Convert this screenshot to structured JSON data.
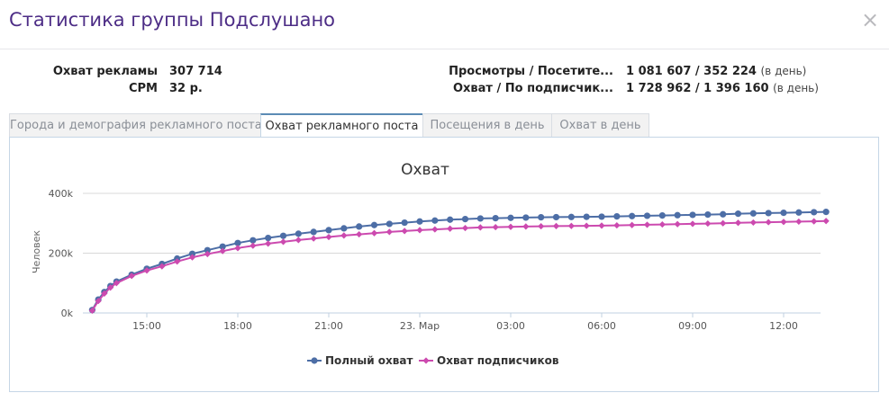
{
  "window": {
    "title": "Статистика группы Подслушано",
    "close_icon": "×"
  },
  "stats": {
    "left": [
      {
        "label": "Охват рекламы",
        "value": "307 714"
      },
      {
        "label": "CPM",
        "value": "32 р."
      }
    ],
    "right": [
      {
        "label": "Просмотры / Посетите...",
        "value": "1 081 607 / 352 224",
        "note": "(в день)"
      },
      {
        "label": "Охват / По подписчик...",
        "value": "1 728 962 / 1 396 160",
        "note": "(в день)"
      }
    ]
  },
  "tabs": [
    {
      "label": "Города и демография рекламного поста",
      "active": false
    },
    {
      "label": "Охват рекламного поста",
      "active": true
    },
    {
      "label": "Посещения в день",
      "active": false
    },
    {
      "label": "Охват в день",
      "active": false
    }
  ],
  "chart_data": {
    "type": "line",
    "title": "Охват",
    "ylabel": "Человек",
    "xlabel": "",
    "ylim": [
      0,
      400000
    ],
    "y_ticks": [
      {
        "value": 0,
        "label": "0k"
      },
      {
        "value": 200000,
        "label": "200k"
      },
      {
        "value": 400000,
        "label": "400k"
      }
    ],
    "x_range_hours": [
      13.2,
      25.9
    ],
    "x_ticks": [
      {
        "hour": 15,
        "label": "15:00"
      },
      {
        "hour": 18,
        "label": "18:00"
      },
      {
        "hour": 21,
        "label": "21:00"
      },
      {
        "hour": 24,
        "label": "23. Мар"
      },
      {
        "hour": 27,
        "label": "03:00"
      },
      {
        "hour": 30,
        "label": "06:00"
      },
      {
        "hour": 33,
        "label": "09:00"
      },
      {
        "hour": 36,
        "label": "12:00"
      }
    ],
    "grid": true,
    "legend_position": "bottom",
    "series": [
      {
        "name": "Полный охват",
        "color": "#4d6ea6",
        "marker": "circle",
        "points": [
          [
            13.2,
            10000
          ],
          [
            13.4,
            45000
          ],
          [
            13.6,
            70000
          ],
          [
            13.8,
            90000
          ],
          [
            14.0,
            105000
          ],
          [
            14.5,
            128000
          ],
          [
            15.0,
            148000
          ],
          [
            15.5,
            164000
          ],
          [
            16.0,
            182000
          ],
          [
            16.5,
            198000
          ],
          [
            17.0,
            210000
          ],
          [
            17.5,
            222000
          ],
          [
            18.0,
            234000
          ],
          [
            18.5,
            243000
          ],
          [
            19.0,
            251000
          ],
          [
            19.5,
            258000
          ],
          [
            20.0,
            265000
          ],
          [
            20.5,
            271000
          ],
          [
            21.0,
            277000
          ],
          [
            21.5,
            283000
          ],
          [
            22.0,
            289000
          ],
          [
            22.5,
            294000
          ],
          [
            23.0,
            298000
          ],
          [
            23.5,
            302000
          ],
          [
            24.0,
            306000
          ],
          [
            24.5,
            309000
          ],
          [
            25.0,
            312000
          ],
          [
            25.5,
            314000
          ],
          [
            26.0,
            316000
          ],
          [
            26.5,
            317000
          ],
          [
            27.0,
            318000
          ],
          [
            27.5,
            319000
          ],
          [
            28.0,
            320000
          ],
          [
            28.5,
            320500
          ],
          [
            29.0,
            321000
          ],
          [
            29.5,
            321500
          ],
          [
            30.0,
            322000
          ],
          [
            30.5,
            323000
          ],
          [
            31.0,
            324000
          ],
          [
            31.5,
            325000
          ],
          [
            32.0,
            326000
          ],
          [
            32.5,
            327000
          ],
          [
            33.0,
            328000
          ],
          [
            33.5,
            329000
          ],
          [
            34.0,
            330000
          ],
          [
            34.5,
            332000
          ],
          [
            35.0,
            333000
          ],
          [
            35.5,
            334000
          ],
          [
            36.0,
            335000
          ],
          [
            36.5,
            336000
          ],
          [
            37.0,
            337000
          ],
          [
            37.4,
            338000
          ]
        ]
      },
      {
        "name": "Охват подписчиков",
        "color": "#cc4aaf",
        "marker": "diamond",
        "points": [
          [
            13.2,
            8000
          ],
          [
            13.4,
            40000
          ],
          [
            13.6,
            65000
          ],
          [
            13.8,
            85000
          ],
          [
            14.0,
            100000
          ],
          [
            14.5,
            124000
          ],
          [
            15.0,
            142000
          ],
          [
            15.5,
            156000
          ],
          [
            16.0,
            172000
          ],
          [
            16.5,
            186000
          ],
          [
            17.0,
            197000
          ],
          [
            17.5,
            207000
          ],
          [
            18.0,
            217000
          ],
          [
            18.5,
            225000
          ],
          [
            19.0,
            232000
          ],
          [
            19.5,
            238000
          ],
          [
            20.0,
            244000
          ],
          [
            20.5,
            249000
          ],
          [
            21.0,
            254000
          ],
          [
            21.5,
            259000
          ],
          [
            22.0,
            263000
          ],
          [
            22.5,
            267000
          ],
          [
            23.0,
            271000
          ],
          [
            23.5,
            274000
          ],
          [
            24.0,
            277000
          ],
          [
            24.5,
            279500
          ],
          [
            25.0,
            282000
          ],
          [
            25.5,
            284000
          ],
          [
            26.0,
            286000
          ],
          [
            26.5,
            287000
          ],
          [
            27.0,
            288000
          ],
          [
            27.5,
            289000
          ],
          [
            28.0,
            290000
          ],
          [
            28.5,
            290500
          ],
          [
            29.0,
            291000
          ],
          [
            29.5,
            291500
          ],
          [
            30.0,
            292000
          ],
          [
            30.5,
            293000
          ],
          [
            31.0,
            294000
          ],
          [
            31.5,
            295000
          ],
          [
            32.0,
            296000
          ],
          [
            32.5,
            297000
          ],
          [
            33.0,
            298000
          ],
          [
            33.5,
            299000
          ],
          [
            34.0,
            300000
          ],
          [
            34.5,
            301500
          ],
          [
            35.0,
            302500
          ],
          [
            35.5,
            303500
          ],
          [
            36.0,
            304500
          ],
          [
            36.5,
            305500
          ],
          [
            37.0,
            306500
          ],
          [
            37.4,
            307500
          ]
        ]
      }
    ]
  }
}
